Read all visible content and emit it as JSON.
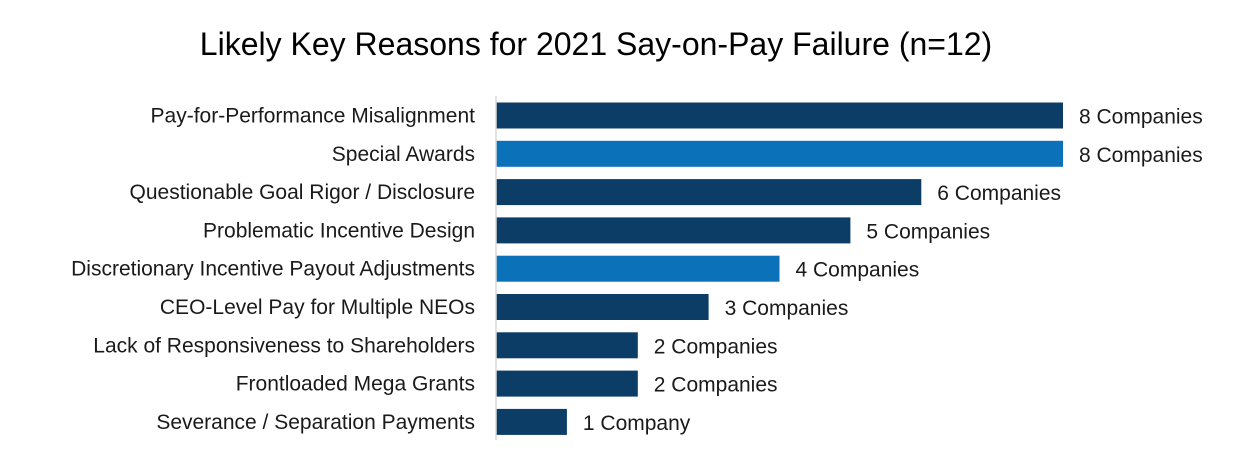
{
  "chart_data": {
    "type": "bar",
    "orientation": "horizontal",
    "title": "Likely Key Reasons for 2021 Say-on-Pay Failure (n=12)",
    "xlabel": "",
    "ylabel": "",
    "xlim": [
      0,
      8
    ],
    "grid": false,
    "legend": "none",
    "categories": [
      "Pay-for-Performance Misalignment",
      "Special Awards",
      "Questionable Goal Rigor / Disclosure",
      "Problematic Incentive Design",
      "Discretionary Incentive Payout Adjustments",
      "CEO-Level Pay for Multiple NEOs",
      "Lack of Responsiveness to Shareholders",
      "Frontloaded Mega Grants",
      "Severance / Separation Payments"
    ],
    "values": [
      8,
      8,
      6,
      5,
      4,
      3,
      2,
      2,
      1
    ],
    "data_labels": [
      "8 Companies",
      "8 Companies",
      "6 Companies",
      "5 Companies",
      "4 Companies",
      "3 Companies",
      "2 Companies",
      "2 Companies",
      "1 Company"
    ],
    "bar_colors": [
      "#0b3d66",
      "#0b72ba",
      "#0b3d66",
      "#0b3d66",
      "#0b72ba",
      "#0b3d66",
      "#0b3d66",
      "#0b3d66",
      "#0b3d66"
    ],
    "axis_color": "#d9d9d9"
  }
}
